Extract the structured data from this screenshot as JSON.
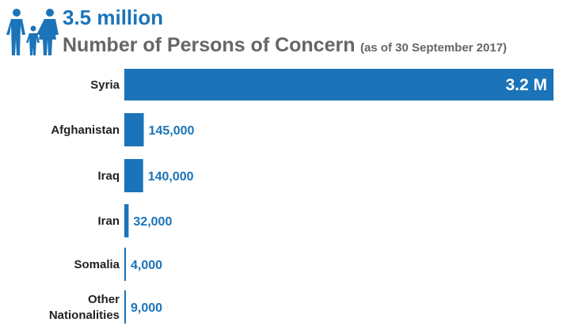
{
  "header": {
    "headline": "3.5 million",
    "subtitle": "Number of Persons of Concern",
    "note": "(as of 30 September 2017)",
    "icon": "family-icon"
  },
  "colors": {
    "accent": "#1b74b9",
    "subtitle": "#666666",
    "label": "#222222"
  },
  "chart_data": {
    "type": "bar",
    "orientation": "horizontal",
    "title": "Number of Persons of Concern",
    "subtitle": "(as of 30 September 2017)",
    "total_label": "3.5 million",
    "categories": [
      [
        "Syria"
      ],
      [
        "Afghanistan"
      ],
      [
        "Iraq"
      ],
      [
        "Iran"
      ],
      [
        "Somalia"
      ],
      [
        "Other",
        "Nationalities"
      ]
    ],
    "values": [
      3200000,
      145000,
      140000,
      32000,
      4000,
      9000
    ],
    "value_labels": [
      "3.2 M",
      "145,000",
      "140,000",
      "32,000",
      "4,000",
      "9,000"
    ],
    "xlim": [
      0,
      3200000
    ],
    "xlabel": "",
    "ylabel": "",
    "grid": false,
    "legend": "none"
  }
}
